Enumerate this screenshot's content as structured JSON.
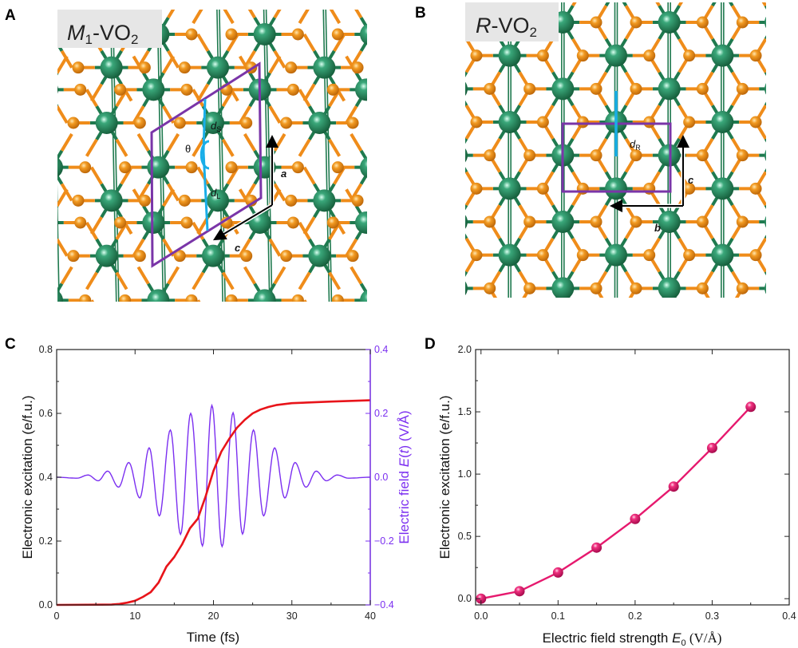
{
  "panels": {
    "A": {
      "letter": "A",
      "structure_label": {
        "prefix": "M",
        "prefix_sub": "1",
        "mid": "-VO",
        "sub": "2"
      },
      "annotations": {
        "theta": "θ",
        "dS": "d",
        "dS_sub": "S",
        "dL": "d",
        "dL_sub": "L",
        "axis_a": "a",
        "axis_c": "c"
      }
    },
    "B": {
      "letter": "B",
      "structure_label": {
        "prefix": "R",
        "mid": "-VO",
        "sub": "2"
      },
      "annotations": {
        "dR": "d",
        "dR_sub": "R",
        "axis_c": "c",
        "axis_b": "b"
      }
    },
    "C": {
      "letter": "C"
    },
    "D": {
      "letter": "D"
    }
  },
  "colors": {
    "vanadium": "#1f7a4f",
    "oxygen": "#ef8c1a",
    "bond": "#1f7a4f",
    "cell": "#7a35a8",
    "distance_line": "#19aee8",
    "excitation_curve": "#e8141a",
    "field_curve": "#7b2ff0",
    "panelD_curve": "#e6196e"
  },
  "chart_data": [
    {
      "panel": "C",
      "type": "line",
      "title": "",
      "xlabel": "Time (fs)",
      "ylabel": "Electronic excitation (e/f.u.)",
      "ylabel_right": {
        "pre": "Electric field ",
        "E": "E",
        "open": "(",
        "t": "t",
        "post": ") (V/Å)"
      },
      "xlim": [
        0,
        40
      ],
      "ylim": [
        0.0,
        0.8
      ],
      "ylim_right": [
        -0.4,
        0.4
      ],
      "xticks": [
        "0",
        "10",
        "20",
        "30",
        "40"
      ],
      "yticks": [
        "0.0",
        "0.2",
        "0.4",
        "0.6",
        "0.8"
      ],
      "yticks_right": [
        "-0.4",
        "-0.2",
        "0.0",
        "0.2",
        "0.4"
      ],
      "grid": false,
      "series": [
        {
          "axis": "left",
          "color": "#e8141a",
          "x": [
            0,
            7,
            8,
            9,
            10,
            11,
            12,
            13,
            14,
            15,
            16,
            17,
            18,
            19,
            20,
            21,
            22,
            23,
            24,
            25,
            26,
            27,
            28,
            30,
            35,
            40
          ],
          "y": [
            0.0,
            0.001,
            0.003,
            0.007,
            0.013,
            0.025,
            0.04,
            0.07,
            0.12,
            0.15,
            0.19,
            0.24,
            0.27,
            0.34,
            0.42,
            0.48,
            0.52,
            0.555,
            0.58,
            0.6,
            0.612,
            0.62,
            0.626,
            0.632,
            0.637,
            0.641
          ]
        },
        {
          "axis": "right",
          "color": "#7b2ff0",
          "x": [
            0,
            2.6,
            4.0,
            5.3,
            6.5,
            7.9,
            9.2,
            10.6,
            11.8,
            13.1,
            14.5,
            15.8,
            17.1,
            18.6,
            19.8,
            21.1,
            22.5,
            23.7,
            25.1,
            26.4,
            27.8,
            29.1,
            30.4,
            31.8,
            33.1,
            34.4,
            35.8,
            37.2,
            40
          ],
          "y": [
            0.0,
            -0.003,
            0.007,
            -0.011,
            0.019,
            -0.031,
            0.046,
            -0.065,
            0.092,
            -0.121,
            0.148,
            -0.179,
            0.2,
            -0.215,
            0.225,
            -0.217,
            0.202,
            -0.178,
            0.148,
            -0.121,
            0.092,
            -0.065,
            0.046,
            -0.031,
            0.019,
            -0.011,
            0.007,
            -0.003,
            0.0
          ]
        }
      ]
    },
    {
      "panel": "D",
      "type": "line",
      "title": "",
      "xlabel": {
        "pre": "Electric field strength ",
        "E": "E",
        "sub": "0",
        "post": " (V/Å)"
      },
      "ylabel": "Electronic excitation (e/f.u.)",
      "xlim": [
        -0.007,
        0.4
      ],
      "ylim": [
        -0.05,
        2.0
      ],
      "xticks": [
        "0.0",
        "0.1",
        "0.2",
        "0.3",
        "0.4"
      ],
      "yticks": [
        "0.0",
        "0.5",
        "1.0",
        "1.5",
        "2.0"
      ],
      "grid": false,
      "markers": "sphere",
      "series": [
        {
          "color": "#e6196e",
          "x": [
            0.0,
            0.05,
            0.1,
            0.15,
            0.2,
            0.25,
            0.3,
            0.35
          ],
          "y": [
            0.0,
            0.06,
            0.21,
            0.41,
            0.64,
            0.9,
            1.21,
            1.54
          ]
        }
      ]
    }
  ]
}
